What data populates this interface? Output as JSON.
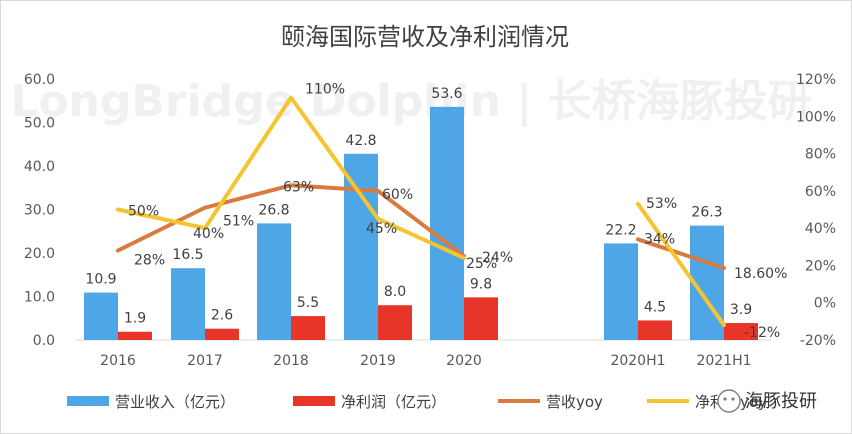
{
  "chart_data": {
    "type": "bar",
    "title": "颐海国际营收及净利润情况",
    "categories": [
      "2016",
      "2017",
      "2018",
      "2019",
      "2020",
      "2020H1",
      "2021H1"
    ],
    "series": [
      {
        "name": "营业收入（亿元）",
        "kind": "bar",
        "axis": "left",
        "color": "#4ea6e6",
        "values": [
          10.9,
          16.5,
          26.8,
          42.8,
          53.6,
          22.2,
          26.3
        ],
        "labels": [
          "10.9",
          "16.5",
          "26.8",
          "42.8",
          "53.6",
          "22.2",
          "26.3"
        ]
      },
      {
        "name": "净利润（亿元）",
        "kind": "bar",
        "axis": "left",
        "color": "#e8352a",
        "values": [
          1.9,
          2.6,
          5.5,
          8.0,
          9.8,
          4.5,
          3.9
        ],
        "labels": [
          "1.9",
          "2.6",
          "5.5",
          "8.0",
          "9.8",
          "4.5",
          "3.9"
        ]
      },
      {
        "name": "营收yoy",
        "kind": "line",
        "axis": "right",
        "color": "#d97b3f",
        "segments": [
          [
            0,
            4
          ],
          [
            5,
            6
          ]
        ],
        "values": [
          28,
          51,
          63,
          60,
          25,
          34,
          18.6
        ],
        "labels": [
          "28%",
          "51%",
          "63%",
          "60%",
          "25%",
          "34%",
          "18.60%"
        ]
      },
      {
        "name": "净利润yoy",
        "kind": "line",
        "axis": "right",
        "color": "#f5c431",
        "segments": [
          [
            0,
            4
          ],
          [
            5,
            6
          ]
        ],
        "values": [
          50,
          40,
          110,
          45,
          24,
          53,
          -12
        ],
        "labels": [
          "50%",
          "40%",
          "110%",
          "45%",
          "24%",
          "53%",
          "-12%"
        ]
      }
    ],
    "y_left": {
      "min": 0,
      "max": 60,
      "ticks": [
        "0.0",
        "10.0",
        "20.0",
        "30.0",
        "40.0",
        "50.0",
        "60.0"
      ]
    },
    "y_right": {
      "min": -20,
      "max": 120,
      "ticks": [
        "-20%",
        "0%",
        "20%",
        "40%",
        "60%",
        "80%",
        "100%",
        "120%"
      ]
    },
    "legend": {
      "position": "bottom",
      "labels": [
        "营业收入（亿元）",
        "净利润（亿元）",
        "营收yoy",
        "净利润yoy"
      ]
    },
    "watermark": {
      "text": "LongBridge Dolphin | 长桥海豚投研"
    },
    "overlay_badge": {
      "text": "海豚投研"
    }
  }
}
